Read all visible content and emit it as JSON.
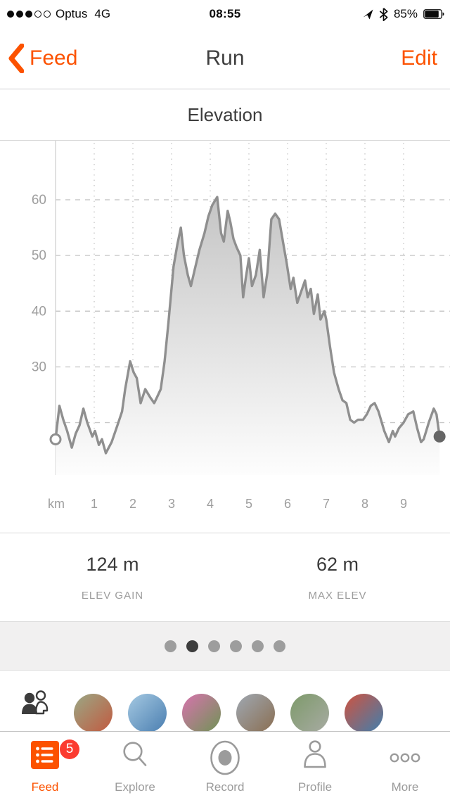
{
  "theme": {
    "accent": "#FC5200",
    "badge": "#FB3B30",
    "inactive": "#9b9b9b"
  },
  "status_bar": {
    "signal_filled": 3,
    "signal_total": 5,
    "carrier": "Optus",
    "network": "4G",
    "time": "08:55",
    "battery_percent": "85%"
  },
  "nav_bar": {
    "back_label": "Feed",
    "title": "Run",
    "edit_label": "Edit"
  },
  "section_header": {
    "title": "Elevation"
  },
  "chart_data": {
    "type": "area",
    "title": "Elevation",
    "xlabel": "km",
    "ylabel": "m",
    "x_unit_label": "km",
    "xticks": [
      1,
      2,
      3,
      4,
      5,
      6,
      7,
      8,
      9
    ],
    "ytick_labels": [
      60,
      50,
      40,
      30
    ],
    "ygrid": [
      60,
      50,
      40,
      30,
      20
    ],
    "xlim": [
      0,
      10.2
    ],
    "ylim": [
      10.6,
      70.6
    ],
    "grid": "dashed",
    "line_color": "#8f8f8f",
    "grid_color": "#c9c9c9",
    "axis_color": "#d4d4d4",
    "fill_top": "#c5c5c5",
    "fill_bottom": "#fdfdfd",
    "start_marker": {
      "km": 0,
      "elev": 17,
      "style": "open"
    },
    "end_marker": {
      "km": 9.93,
      "elev": 17.5,
      "style": "filled",
      "color": "#666666"
    },
    "series": [
      {
        "name": "elevation",
        "unit": "m",
        "points": [
          [
            0,
            17
          ],
          [
            0.1,
            23
          ],
          [
            0.2,
            20.5
          ],
          [
            0.3,
            18.5
          ],
          [
            0.42,
            15.5
          ],
          [
            0.52,
            18
          ],
          [
            0.62,
            19.5
          ],
          [
            0.72,
            22.5
          ],
          [
            0.82,
            20
          ],
          [
            0.95,
            17.5
          ],
          [
            1.02,
            18.5
          ],
          [
            1.12,
            16
          ],
          [
            1.2,
            17
          ],
          [
            1.3,
            14.5
          ],
          [
            1.45,
            16.5
          ],
          [
            1.6,
            19.5
          ],
          [
            1.72,
            22
          ],
          [
            1.8,
            26
          ],
          [
            1.93,
            31
          ],
          [
            2.02,
            29
          ],
          [
            2.1,
            28
          ],
          [
            2.2,
            23.5
          ],
          [
            2.32,
            26
          ],
          [
            2.45,
            24.5
          ],
          [
            2.55,
            23.5
          ],
          [
            2.62,
            24.5
          ],
          [
            2.72,
            26
          ],
          [
            2.82,
            31
          ],
          [
            2.92,
            38
          ],
          [
            3.05,
            48
          ],
          [
            3.15,
            52
          ],
          [
            3.24,
            55
          ],
          [
            3.32,
            50
          ],
          [
            3.42,
            46.5
          ],
          [
            3.5,
            44.5
          ],
          [
            3.6,
            47.5
          ],
          [
            3.72,
            51
          ],
          [
            3.85,
            54
          ],
          [
            3.95,
            57
          ],
          [
            4.05,
            59
          ],
          [
            4.18,
            60.5
          ],
          [
            4.28,
            54
          ],
          [
            4.35,
            52.5
          ],
          [
            4.45,
            58
          ],
          [
            4.52,
            56
          ],
          [
            4.6,
            53
          ],
          [
            4.68,
            51.5
          ],
          [
            4.78,
            50
          ],
          [
            4.85,
            42.5
          ],
          [
            4.92,
            46
          ],
          [
            5.0,
            49.5
          ],
          [
            5.08,
            44.5
          ],
          [
            5.18,
            46.5
          ],
          [
            5.28,
            51
          ],
          [
            5.38,
            42.5
          ],
          [
            5.48,
            47
          ],
          [
            5.58,
            56.5
          ],
          [
            5.68,
            57.5
          ],
          [
            5.78,
            56.5
          ],
          [
            5.88,
            52.5
          ],
          [
            5.98,
            48.5
          ],
          [
            6.08,
            44
          ],
          [
            6.15,
            46
          ],
          [
            6.25,
            41.5
          ],
          [
            6.35,
            43.5
          ],
          [
            6.45,
            45.5
          ],
          [
            6.52,
            42.5
          ],
          [
            6.6,
            44
          ],
          [
            6.68,
            39.5
          ],
          [
            6.78,
            43
          ],
          [
            6.85,
            38.5
          ],
          [
            6.95,
            40
          ],
          [
            7.0,
            38.5
          ],
          [
            7.1,
            33.5
          ],
          [
            7.2,
            29
          ],
          [
            7.32,
            26
          ],
          [
            7.42,
            24
          ],
          [
            7.52,
            23.5
          ],
          [
            7.62,
            20.5
          ],
          [
            7.72,
            20
          ],
          [
            7.82,
            20.5
          ],
          [
            7.95,
            20.5
          ],
          [
            8.05,
            21.5
          ],
          [
            8.15,
            23
          ],
          [
            8.25,
            23.5
          ],
          [
            8.35,
            22
          ],
          [
            8.5,
            18.5
          ],
          [
            8.62,
            16.5
          ],
          [
            8.72,
            18.5
          ],
          [
            8.78,
            17.5
          ],
          [
            8.88,
            19
          ],
          [
            9.0,
            20
          ],
          [
            9.12,
            21.5
          ],
          [
            9.25,
            22
          ],
          [
            9.35,
            19
          ],
          [
            9.45,
            16.5
          ],
          [
            9.52,
            17
          ],
          [
            9.65,
            20
          ],
          [
            9.78,
            22.5
          ],
          [
            9.85,
            21.5
          ],
          [
            9.93,
            17.5
          ]
        ]
      }
    ]
  },
  "stats": {
    "items": [
      {
        "value": "124 m",
        "label": "ELEV GAIN"
      },
      {
        "value": "62 m",
        "label": "MAX ELEV"
      }
    ]
  },
  "pager": {
    "dot_count": 6,
    "active_index": 1,
    "dot_color": "#9d9d9d",
    "active_color": "#3d3d3d"
  },
  "social_row": {
    "avatars": [
      {
        "colors": [
          "#9aa885",
          "#c2593f"
        ]
      },
      {
        "colors": [
          "#a5c9e2",
          "#4a7eb0"
        ]
      },
      {
        "colors": [
          "#d873ae",
          "#6f9355"
        ]
      },
      {
        "colors": [
          "#9fa8b2",
          "#8a6e51"
        ]
      },
      {
        "colors": [
          "#7d9a6a",
          "#a8aba3"
        ]
      },
      {
        "colors": [
          "#cf5340",
          "#3f7fae"
        ]
      }
    ]
  },
  "tab_bar": {
    "items": [
      {
        "label": "Feed",
        "badge": "5",
        "active": true
      },
      {
        "label": "Explore",
        "active": false
      },
      {
        "label": "Record",
        "active": false
      },
      {
        "label": "Profile",
        "active": false
      },
      {
        "label": "More",
        "active": false
      }
    ]
  }
}
